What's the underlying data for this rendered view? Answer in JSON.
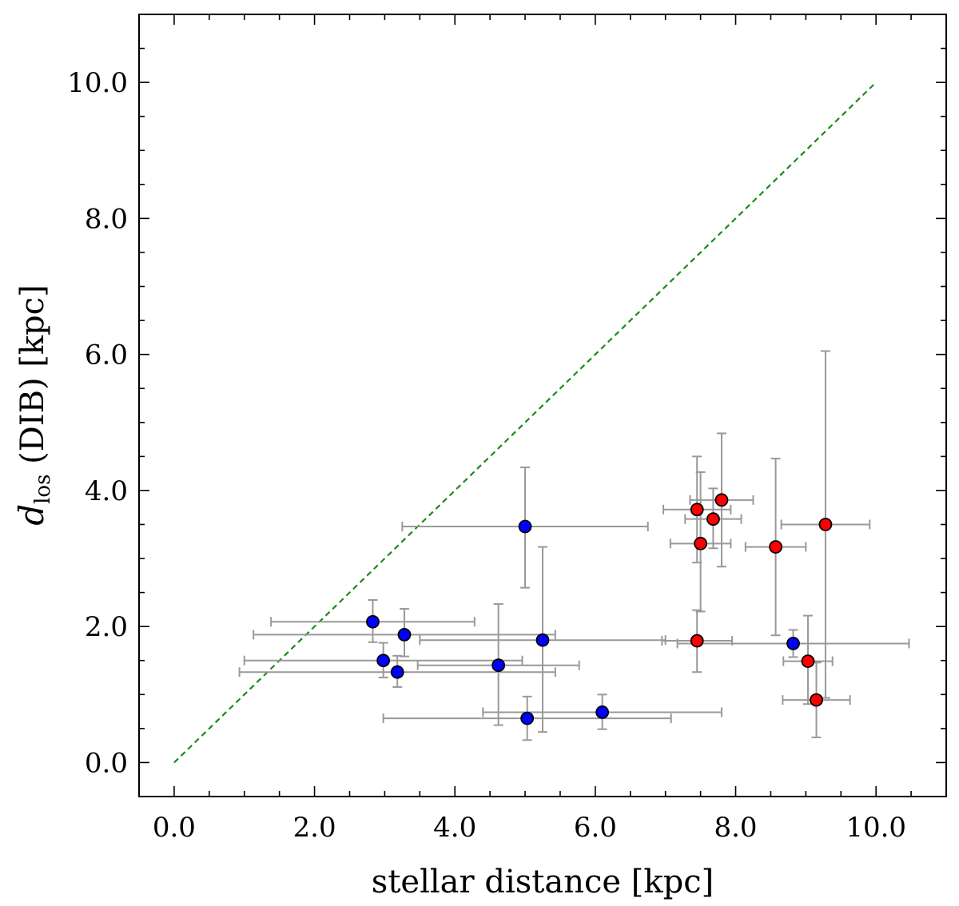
{
  "chart_data": {
    "type": "scatter",
    "xlabel": "stellar distance [kpc]",
    "ylabel_main": "d",
    "ylabel_sub": "los",
    "ylabel_rest": " (DIB) [kpc]",
    "xlim": [
      -0.5,
      11.0
    ],
    "ylim": [
      -0.5,
      11.0
    ],
    "xticks": [
      0.0,
      2.0,
      4.0,
      6.0,
      8.0,
      10.0
    ],
    "yticks": [
      0.0,
      2.0,
      4.0,
      6.0,
      8.0,
      10.0
    ],
    "xtick_labels": [
      "0.0",
      "2.0",
      "4.0",
      "6.0",
      "8.0",
      "10.0"
    ],
    "ytick_labels": [
      "0.0",
      "2.0",
      "4.0",
      "6.0",
      "8.0",
      "10.0"
    ],
    "reference_line": {
      "x": [
        0,
        10
      ],
      "y": [
        0,
        10
      ],
      "color": "#1a8a1a",
      "style": "dashed"
    },
    "series": [
      {
        "name": "blue",
        "color": "#0000ff",
        "points": [
          {
            "x": 2.83,
            "y": 2.07,
            "xerr": [
              1.45,
              1.45
            ],
            "yerr": [
              0.3,
              0.32
            ]
          },
          {
            "x": 3.28,
            "y": 1.88,
            "xerr": [
              2.15,
              2.15
            ],
            "yerr": [
              0.32,
              0.38
            ]
          },
          {
            "x": 2.98,
            "y": 1.5,
            "xerr": [
              1.98,
              1.98
            ],
            "yerr": [
              0.25,
              0.26
            ]
          },
          {
            "x": 3.18,
            "y": 1.33,
            "xerr": [
              2.25,
              2.25
            ],
            "yerr": [
              0.22,
              0.24
            ]
          },
          {
            "x": 4.62,
            "y": 1.43,
            "xerr": [
              1.15,
              1.15
            ],
            "yerr": [
              0.88,
              0.9
            ]
          },
          {
            "x": 5.0,
            "y": 3.47,
            "xerr": [
              1.75,
              1.75
            ],
            "yerr": [
              0.9,
              0.87
            ]
          },
          {
            "x": 5.25,
            "y": 1.8,
            "xerr": [
              1.75,
              1.75
            ],
            "yerr": [
              1.35,
              1.37
            ]
          },
          {
            "x": 5.03,
            "y": 0.65,
            "xerr": [
              2.05,
              2.05
            ],
            "yerr": [
              0.32,
              0.32
            ]
          },
          {
            "x": 6.1,
            "y": 0.74,
            "xerr": [
              1.7,
              1.7
            ],
            "yerr": [
              0.25,
              0.26
            ]
          },
          {
            "x": 8.82,
            "y": 1.75,
            "xerr": [
              1.65,
              1.65
            ],
            "yerr": [
              0.2,
              0.2
            ]
          }
        ]
      },
      {
        "name": "red",
        "color": "#ff0000",
        "points": [
          {
            "x": 7.45,
            "y": 3.72,
            "xerr": [
              0.48,
              0.48
            ],
            "yerr": [
              0.78,
              0.78
            ]
          },
          {
            "x": 7.8,
            "y": 3.86,
            "xerr": [
              0.45,
              0.45
            ],
            "yerr": [
              0.98,
              0.98
            ]
          },
          {
            "x": 7.68,
            "y": 3.58,
            "xerr": [
              0.4,
              0.4
            ],
            "yerr": [
              0.43,
              0.45
            ]
          },
          {
            "x": 7.5,
            "y": 3.22,
            "xerr": [
              0.43,
              0.43
            ],
            "yerr": [
              1.0,
              1.05
            ]
          },
          {
            "x": 8.57,
            "y": 3.17,
            "xerr": [
              0.43,
              0.43
            ],
            "yerr": [
              1.3,
              1.3
            ]
          },
          {
            "x": 9.28,
            "y": 3.5,
            "xerr": [
              0.63,
              0.63
            ],
            "yerr": [
              2.55,
              2.55
            ]
          },
          {
            "x": 7.45,
            "y": 1.79,
            "xerr": [
              0.5,
              0.5
            ],
            "yerr": [
              0.46,
              0.45
            ]
          },
          {
            "x": 9.03,
            "y": 1.49,
            "xerr": [
              0.35,
              0.35
            ],
            "yerr": [
              0.63,
              0.67
            ]
          },
          {
            "x": 9.15,
            "y": 0.92,
            "xerr": [
              0.48,
              0.48
            ],
            "yerr": [
              0.55,
              0.55
            ]
          }
        ]
      }
    ]
  }
}
